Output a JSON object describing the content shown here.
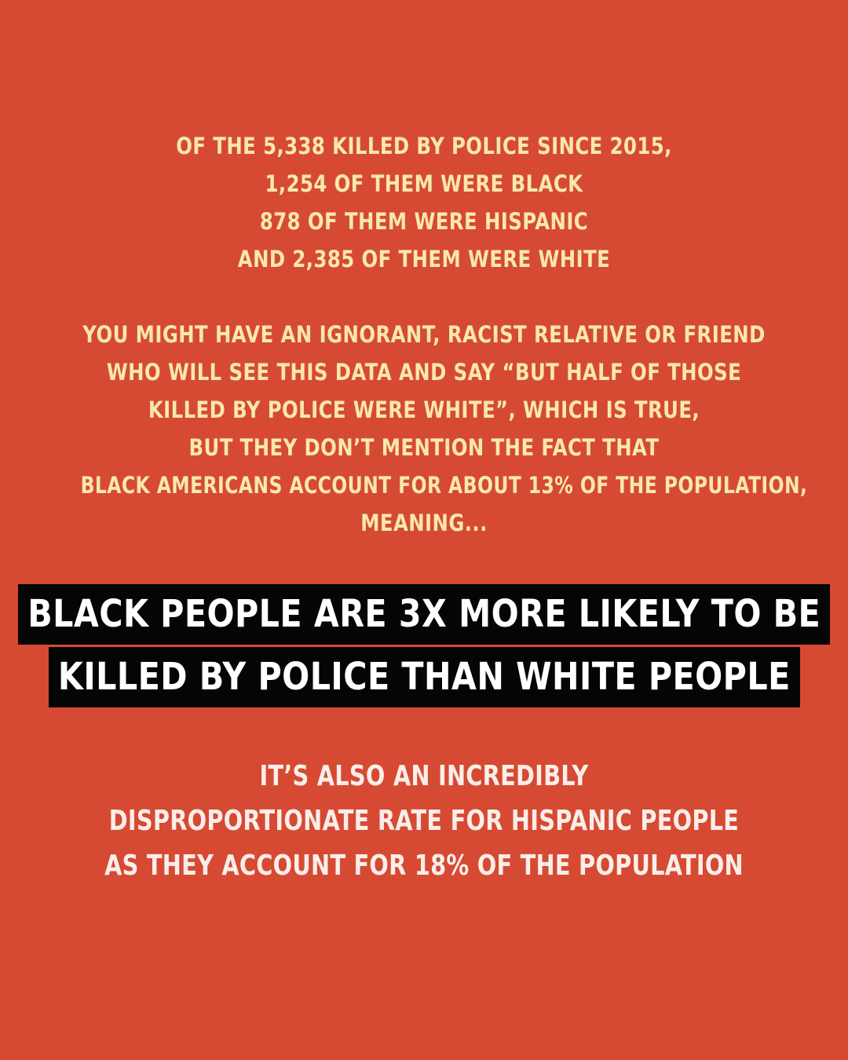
{
  "intro": {
    "lines": [
      "OF THE 5,338 KILLED BY POLICE SINCE 2015,",
      "1,254 OF THEM WERE BLACK",
      "878 OF THEM WERE HISPANIC",
      "AND 2,385 OF THEM WERE WHITE"
    ]
  },
  "context": {
    "lines": [
      "YOU MIGHT HAVE AN IGNORANT, RACIST RELATIVE OR FRIEND",
      "WHO WILL SEE THIS DATA AND SAY “BUT HALF OF THOSE",
      "KILLED BY POLICE WERE WHITE”, WHICH IS TRUE,",
      "BUT THEY DON’T MENTION THE FACT THAT",
      "BLACK AMERICANS ACCOUNT FOR ABOUT 13% OF THE POPULATION,",
      "MEANING..."
    ]
  },
  "headline": {
    "lines": [
      "BLACK PEOPLE ARE 3X MORE LIKELY TO BE",
      "KILLED BY POLICE THAN WHITE PEOPLE"
    ]
  },
  "outro": {
    "lines": [
      "IT’S ALSO AN INCREDIBLY",
      "DISPROPORTIONATE RATE FOR HISPANIC PEOPLE",
      "AS THEY ACCOUNT FOR 18% OF THE POPULATION"
    ]
  },
  "colors": {
    "background": "#d64a33",
    "highlight_text": "#f9e8ad",
    "headline_bg": "#050505",
    "headline_text": "#ffffff",
    "body_text": "#fbeee9"
  }
}
